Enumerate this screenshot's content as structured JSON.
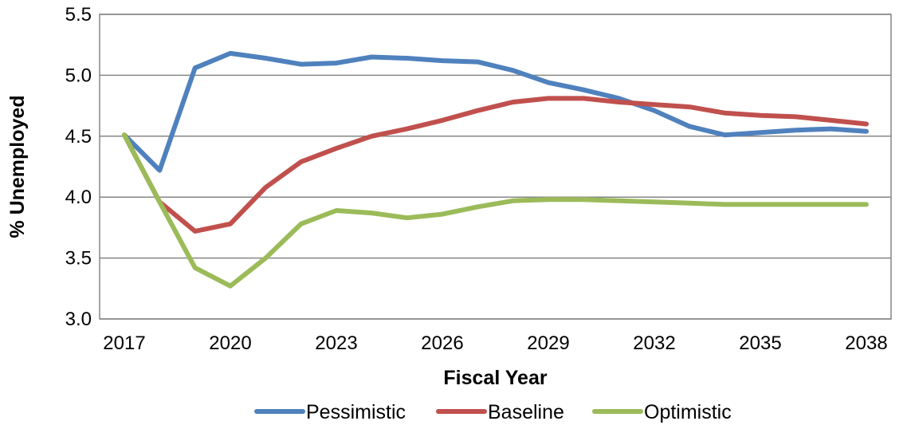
{
  "chart_data": {
    "type": "line",
    "title": "",
    "xlabel": "Fiscal Year",
    "ylabel": "% Unemployed",
    "x": [
      2017,
      2018,
      2019,
      2020,
      2021,
      2022,
      2023,
      2024,
      2025,
      2026,
      2027,
      2028,
      2029,
      2030,
      2031,
      2032,
      2033,
      2034,
      2035,
      2036,
      2037,
      2038
    ],
    "xticks": [
      "2017",
      "2020",
      "2023",
      "2026",
      "2029",
      "2032",
      "2035",
      "2038"
    ],
    "yticks": [
      "3.0",
      "3.5",
      "4.0",
      "4.5",
      "5.0",
      "5.5"
    ],
    "ylim": [
      3.0,
      5.5
    ],
    "xlim": [
      2017,
      2038
    ],
    "grid": "horizontal",
    "legend_position": "bottom",
    "series": [
      {
        "name": "Pessimistic",
        "color": "#4F81BD",
        "values": [
          4.51,
          4.22,
          5.06,
          5.18,
          5.14,
          5.09,
          5.1,
          5.15,
          5.14,
          5.12,
          5.11,
          5.04,
          4.94,
          4.88,
          4.81,
          4.71,
          4.58,
          4.51,
          4.53,
          4.55,
          4.56,
          4.54
        ]
      },
      {
        "name": "Baseline",
        "color": "#C0504D",
        "values": [
          4.51,
          3.96,
          3.72,
          3.78,
          4.08,
          4.29,
          4.4,
          4.5,
          4.56,
          4.63,
          4.71,
          4.78,
          4.81,
          4.81,
          4.78,
          4.76,
          4.74,
          4.69,
          4.67,
          4.66,
          4.63,
          4.6
        ]
      },
      {
        "name": "Optimistic",
        "color": "#9BBB59",
        "values": [
          4.51,
          3.96,
          3.42,
          3.27,
          3.5,
          3.78,
          3.89,
          3.87,
          3.83,
          3.86,
          3.92,
          3.97,
          3.98,
          3.98,
          3.97,
          3.96,
          3.95,
          3.94,
          3.94,
          3.94,
          3.94,
          3.94
        ]
      }
    ]
  }
}
